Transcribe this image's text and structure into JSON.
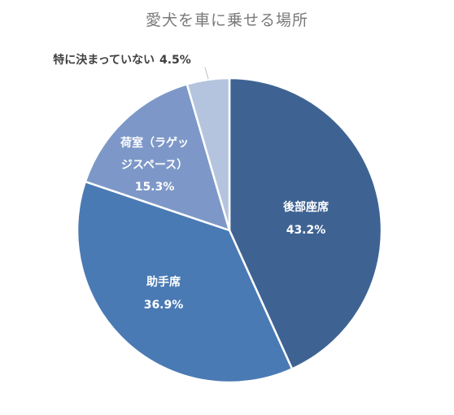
{
  "chart_data": {
    "type": "pie",
    "title": "愛犬を車に乗せる場所",
    "slices": [
      {
        "label": "後部座席",
        "value": 43.2,
        "value_text": "43.2%",
        "color": "#3e6393"
      },
      {
        "label": "助手席",
        "value": 36.9,
        "value_text": "36.9%",
        "color": "#4a7ab4"
      },
      {
        "label_lines": [
          "荷室（ラゲッ",
          "ジスペース）"
        ],
        "value": 15.3,
        "value_text": "15.3%",
        "color": "#7d98c8"
      },
      {
        "label": "特に決まっていない",
        "value": 4.5,
        "value_text": "4.5%",
        "color": "#b5c4de"
      }
    ],
    "start_angle": "12 o'clock",
    "direction": "clockwise",
    "legend": "none"
  }
}
